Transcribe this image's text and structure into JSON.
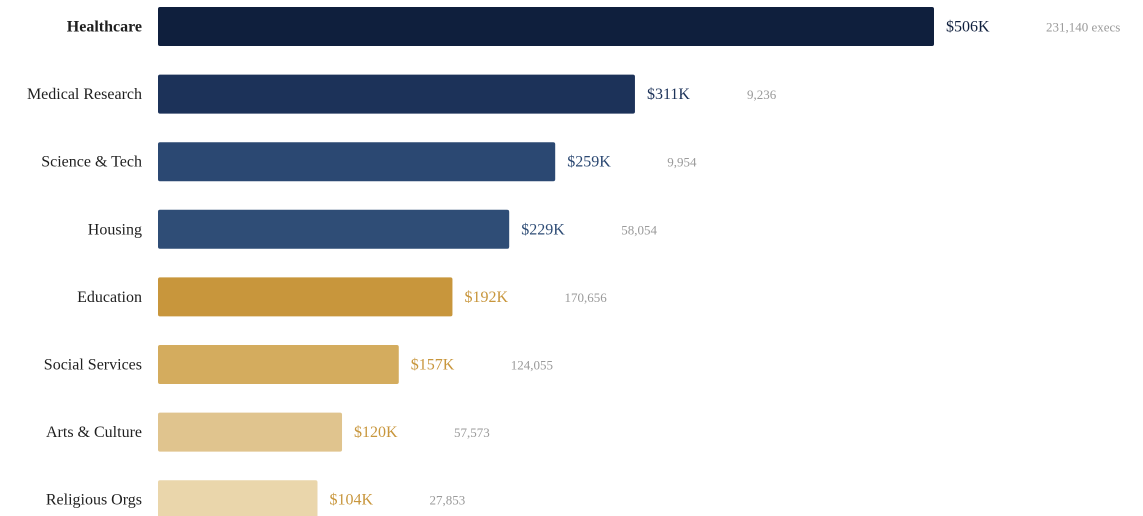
{
  "chart_data": {
    "type": "bar",
    "orientation": "horizontal",
    "categories": [
      "Healthcare",
      "Medical Research",
      "Science & Tech",
      "Housing",
      "Education",
      "Social Services",
      "Arts & Culture",
      "Religious Orgs"
    ],
    "values": [
      506,
      311,
      259,
      229,
      192,
      157,
      120,
      104
    ],
    "value_labels": [
      "$506K",
      "$311K",
      "$259K",
      "$229K",
      "$192K",
      "$157K",
      "$120K",
      "$104K"
    ],
    "count_labels": [
      "231,140 execs",
      "9,236",
      "9,954",
      "58,054",
      "170,656",
      "124,055",
      "57,573",
      "27,853"
    ],
    "highlighted_category": "Healthcare",
    "colors": [
      "#0f1f3d",
      "#1c3259",
      "#2b4872",
      "#2f4d76",
      "#c8963c",
      "#d4ac5e",
      "#e0c48e",
      "#ead6ab"
    ],
    "value_label_colors": [
      "#0f1f3d",
      "#1c3259",
      "#2b4872",
      "#2f4d76",
      "#c8963c",
      "#c8963c",
      "#c8963c",
      "#c8963c"
    ],
    "title": "",
    "xlabel": "",
    "ylabel": "",
    "xlim": [
      0,
      506
    ],
    "grid": false,
    "legend": "none"
  }
}
